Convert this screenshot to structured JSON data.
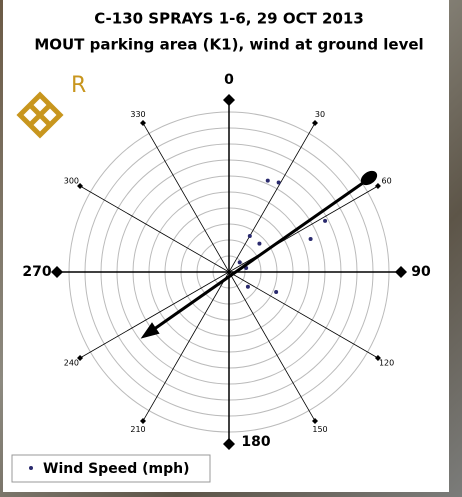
{
  "chart_data": {
    "type": "polar-scatter",
    "title": "C-130 SPRAYS 1-6, 29 OCT 2013",
    "subtitle": "MOUT parking area (K1), wind at ground level",
    "logo_text": "R",
    "angle_ticks": [
      0,
      30,
      60,
      90,
      120,
      150,
      180,
      210,
      240,
      270,
      300,
      330
    ],
    "rlim": [
      0,
      10
    ],
    "rticks": [
      1,
      2,
      3,
      4,
      5,
      6,
      7,
      8,
      9,
      10
    ],
    "series": [
      {
        "name": "Wind Speed (mph)",
        "color": "#2a2a6e",
        "theta": [
          23,
          29,
          62,
          68,
          47,
          30,
          48,
          77,
          128,
          113
        ],
        "r": [
          6.2,
          6.4,
          6.8,
          5.5,
          2.6,
          2.6,
          0.9,
          1.1,
          1.5,
          3.2
        ]
      }
    ]
  }
}
